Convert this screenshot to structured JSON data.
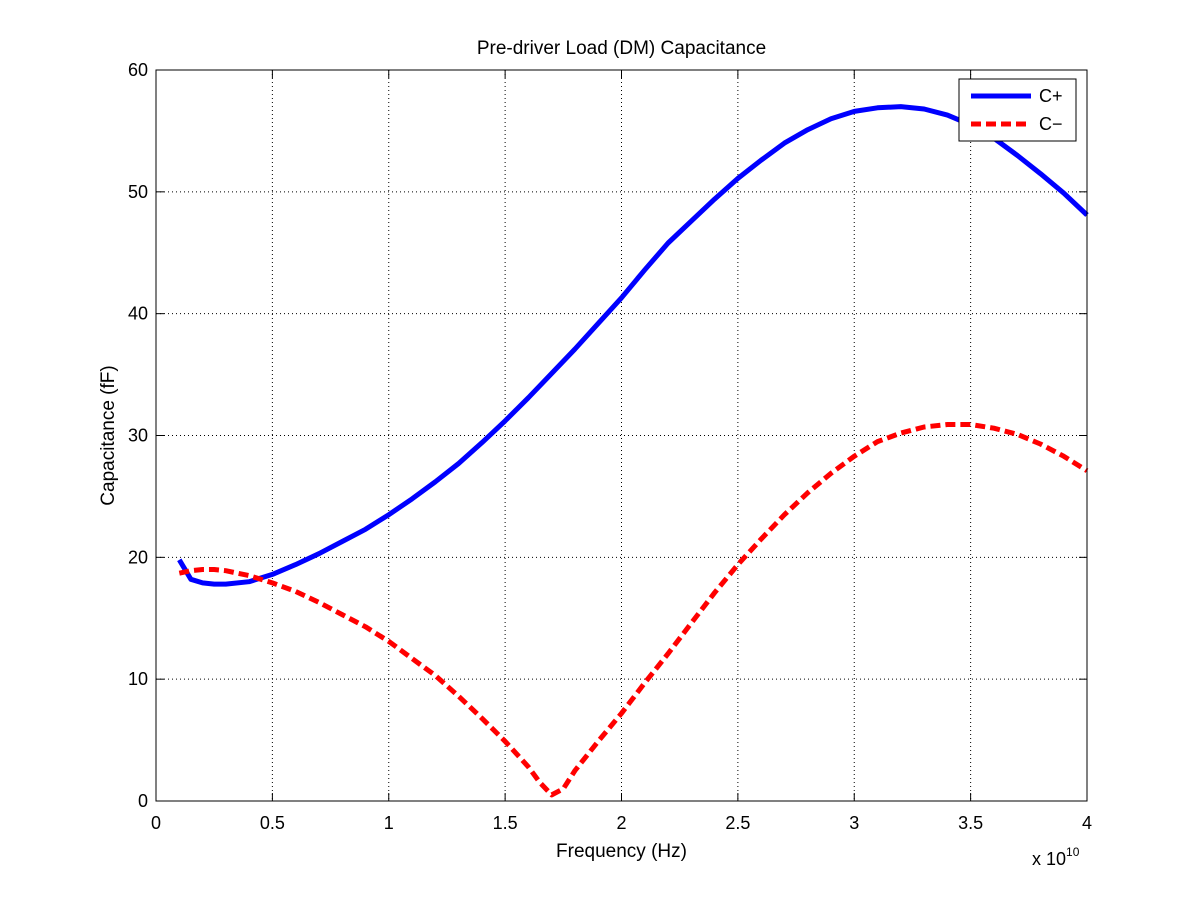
{
  "chart_data": {
    "type": "line",
    "title": "Pre-driver Load (DM) Capacitance",
    "xlabel": "Frequency (Hz)",
    "ylabel": "Capacitance (fF)",
    "x_exponent_label": "x 10",
    "x_exponent_power": "10",
    "xlim": [
      0,
      40000000000
    ],
    "ylim": [
      0,
      60
    ],
    "grid": true,
    "legend_position": "top-right",
    "x_ticks": [
      0,
      5000000000,
      10000000000,
      15000000000,
      20000000000,
      25000000000,
      30000000000,
      35000000000,
      40000000000
    ],
    "x_tick_labels": [
      "0",
      "0.5",
      "1",
      "1.5",
      "2",
      "2.5",
      "3",
      "3.5",
      "4"
    ],
    "y_ticks": [
      0,
      10,
      20,
      30,
      40,
      50,
      60
    ],
    "y_tick_labels": [
      "0",
      "10",
      "20",
      "30",
      "40",
      "50",
      "60"
    ],
    "series": [
      {
        "name": "C+",
        "color": "#0000ff",
        "style": "solid",
        "x": [
          1000000000,
          1500000000,
          2000000000,
          2500000000,
          3000000000,
          4000000000,
          5000000000,
          6000000000,
          7000000000,
          8000000000,
          9000000000,
          10000000000,
          11000000000,
          12000000000,
          13000000000,
          14000000000,
          15000000000,
          16000000000,
          17000000000,
          18000000000,
          19000000000,
          20000000000,
          21000000000,
          22000000000,
          23000000000,
          24000000000,
          25000000000,
          26000000000,
          27000000000,
          28000000000,
          29000000000,
          30000000000,
          31000000000,
          32000000000,
          33000000000,
          34000000000,
          35000000000,
          36000000000,
          37000000000,
          38000000000,
          39000000000,
          40000000000
        ],
        "y": [
          19.8,
          18.2,
          17.9,
          17.8,
          17.8,
          18.0,
          18.6,
          19.4,
          20.3,
          21.3,
          22.3,
          23.5,
          24.8,
          26.2,
          27.7,
          29.4,
          31.2,
          33.1,
          35.1,
          37.1,
          39.2,
          41.3,
          43.6,
          45.8,
          47.6,
          49.4,
          51.1,
          52.6,
          54.0,
          55.1,
          56.0,
          56.6,
          56.9,
          57.0,
          56.8,
          56.3,
          55.5,
          54.4,
          53.0,
          51.5,
          49.9,
          48.1
        ]
      },
      {
        "name": "C−",
        "color": "#ff0000",
        "style": "dashed",
        "x": [
          1000000000,
          1500000000,
          2000000000,
          2500000000,
          3000000000,
          4000000000,
          5000000000,
          6000000000,
          7000000000,
          8000000000,
          9000000000,
          10000000000,
          11000000000,
          12000000000,
          13000000000,
          14000000000,
          15000000000,
          16000000000,
          16500000000,
          17000000000,
          17500000000,
          18000000000,
          19000000000,
          20000000000,
          21000000000,
          22000000000,
          23000000000,
          24000000000,
          25000000000,
          26000000000,
          27000000000,
          28000000000,
          29000000000,
          30000000000,
          31000000000,
          32000000000,
          33000000000,
          34000000000,
          35000000000,
          36000000000,
          37000000000,
          38000000000,
          39000000000,
          40000000000
        ],
        "y": [
          18.7,
          18.9,
          19.0,
          19.0,
          18.9,
          18.5,
          17.9,
          17.2,
          16.3,
          15.3,
          14.3,
          13.1,
          11.7,
          10.3,
          8.6,
          6.8,
          4.9,
          2.8,
          1.5,
          0.5,
          1.0,
          2.5,
          4.9,
          7.2,
          9.7,
          12.1,
          14.6,
          17.1,
          19.4,
          21.5,
          23.5,
          25.3,
          26.9,
          28.3,
          29.5,
          30.2,
          30.7,
          30.9,
          30.9,
          30.6,
          30.1,
          29.3,
          28.3,
          27.1
        ]
      }
    ]
  }
}
